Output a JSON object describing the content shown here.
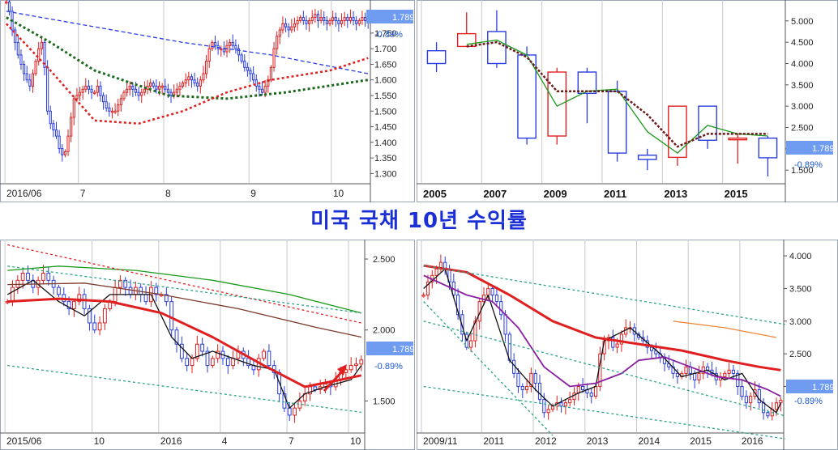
{
  "title": "미국 국채 10년 수익률",
  "colors": {
    "up": "#e02020",
    "down": "#2a3de0",
    "label_bg": "#6f9cf0",
    "change": "#1a56e0",
    "title": "#1a2fd6"
  },
  "chart_data": [
    {
      "id": "daily",
      "type": "candlestick",
      "last_value": "1.789",
      "change": "-0.89%",
      "y_ticks": [
        "1.300",
        "1.350",
        "1.400",
        "1.450",
        "1.500",
        "1.550",
        "1.600",
        "1.650",
        "1.700",
        "1.750",
        "1.800"
      ],
      "ylim": [
        1.27,
        1.83
      ],
      "x_ticks": [
        "2016/06",
        "7",
        "8",
        "9",
        "10"
      ],
      "x_tick_pos": [
        0,
        25,
        54,
        83,
        111
      ],
      "n": 124,
      "closes": [
        1.85,
        1.82,
        1.76,
        1.72,
        1.68,
        1.65,
        1.62,
        1.6,
        1.58,
        1.62,
        1.66,
        1.7,
        1.72,
        1.64,
        1.5,
        1.46,
        1.44,
        1.42,
        1.38,
        1.36,
        1.37,
        1.42,
        1.48,
        1.54,
        1.55,
        1.56,
        1.57,
        1.58,
        1.57,
        1.56,
        1.56,
        1.58,
        1.55,
        1.53,
        1.51,
        1.5,
        1.5,
        1.5,
        1.52,
        1.54,
        1.56,
        1.57,
        1.58,
        1.57,
        1.56,
        1.55,
        1.56,
        1.57,
        1.58,
        1.59,
        1.58,
        1.57,
        1.58,
        1.58,
        1.57,
        1.56,
        1.55,
        1.56,
        1.57,
        1.58,
        1.59,
        1.6,
        1.61,
        1.6,
        1.59,
        1.58,
        1.6,
        1.62,
        1.66,
        1.7,
        1.72,
        1.71,
        1.7,
        1.7,
        1.69,
        1.71,
        1.72,
        1.71,
        1.7,
        1.68,
        1.66,
        1.64,
        1.63,
        1.62,
        1.6,
        1.58,
        1.57,
        1.56,
        1.58,
        1.6,
        1.64,
        1.7,
        1.74,
        1.76,
        1.78,
        1.77,
        1.76,
        1.77,
        1.78,
        1.79,
        1.8,
        1.79,
        1.78,
        1.79,
        1.8,
        1.81,
        1.79,
        1.8,
        1.79,
        1.78,
        1.79,
        1.8,
        1.79,
        1.78,
        1.79,
        1.8,
        1.79,
        1.8,
        1.79,
        1.78,
        1.79,
        1.8,
        1.79,
        1.789
      ],
      "lines": [
        {
          "name": "",
          "color": "#2a3de0",
          "dash": "5,3",
          "width": 1.3,
          "values": [
            [
              0,
              1.82
            ],
            [
              60,
              1.72
            ],
            [
              90,
              1.68
            ],
            [
              123,
              1.62
            ]
          ]
        },
        {
          "name": "",
          "color": "#1d6a1d",
          "dash": "3,3",
          "width": 3,
          "values": [
            [
              0,
              1.8
            ],
            [
              15,
              1.72
            ],
            [
              30,
              1.63
            ],
            [
              55,
              1.55
            ],
            [
              75,
              1.54
            ],
            [
              95,
              1.56
            ],
            [
              123,
              1.6
            ]
          ]
        },
        {
          "name": "",
          "color": "#e02020",
          "dash": "3,3",
          "width": 2.5,
          "values": [
            [
              0,
              1.78
            ],
            [
              15,
              1.63
            ],
            [
              30,
              1.47
            ],
            [
              45,
              1.46
            ],
            [
              60,
              1.5
            ],
            [
              75,
              1.56
            ],
            [
              90,
              1.6
            ],
            [
              110,
              1.63
            ],
            [
              123,
              1.67
            ]
          ]
        }
      ]
    },
    {
      "id": "yearly",
      "type": "candlestick",
      "last_value": "1.789",
      "change": "-0.89%",
      "y_ticks": [
        "1.500",
        "2.000",
        "2.500",
        "3.000",
        "3.500",
        "4.000",
        "4.500",
        "5.000"
      ],
      "ylim": [
        1.2,
        5.3
      ],
      "x_ticks": [
        "2005",
        "2007",
        "2009",
        "2011",
        "2013",
        "2015"
      ],
      "x_tick_pos": [
        0,
        2,
        4,
        6,
        8,
        10
      ],
      "n": 12,
      "candles": [
        [
          4.3,
          4.0,
          4.5,
          3.8
        ],
        [
          4.4,
          4.7,
          5.2,
          4.4
        ],
        [
          4.75,
          4.0,
          5.25,
          3.9
        ],
        [
          4.2,
          2.25,
          4.4,
          2.1
        ],
        [
          2.3,
          3.8,
          3.9,
          2.1
        ],
        [
          3.8,
          3.3,
          3.9,
          2.6
        ],
        [
          3.35,
          1.9,
          3.6,
          1.7
        ],
        [
          1.85,
          1.75,
          2.0,
          1.5
        ],
        [
          1.8,
          3.0,
          3.0,
          1.6
        ],
        [
          3.0,
          2.2,
          3.0,
          2.0
        ],
        [
          2.25,
          2.25,
          2.35,
          1.65
        ],
        [
          2.25,
          1.79,
          2.3,
          1.35
        ]
      ],
      "lines": [
        {
          "name": "",
          "color": "#1a9a1a",
          "dash": "",
          "width": 1.3,
          "values": [
            [
              1,
              4.45
            ],
            [
              2,
              4.55
            ],
            [
              3,
              4.2
            ],
            [
              4,
              3.0
            ],
            [
              5,
              3.35
            ],
            [
              6,
              3.4
            ],
            [
              7,
              2.4
            ],
            [
              8,
              1.9
            ],
            [
              9,
              2.55
            ],
            [
              10,
              2.35
            ],
            [
              11,
              2.3
            ]
          ]
        },
        {
          "name": "",
          "color": "#6a1b1b",
          "dash": "3,2",
          "width": 2.5,
          "values": [
            [
              1,
              4.4
            ],
            [
              2,
              4.5
            ],
            [
              3,
              4.15
            ],
            [
              4,
              3.35
            ],
            [
              5,
              3.35
            ],
            [
              6,
              3.35
            ],
            [
              7,
              2.8
            ],
            [
              8,
              2.05
            ],
            [
              9,
              2.35
            ],
            [
              10,
              2.35
            ],
            [
              11,
              2.35
            ]
          ]
        }
      ]
    },
    {
      "id": "weekly",
      "type": "candlestick",
      "last_value": "1.789",
      "change": "-0.89%",
      "y_ticks": [
        "1.500",
        "2.000",
        "2.500"
      ],
      "ylim": [
        1.28,
        2.58
      ],
      "x_ticks": [
        "2015/06",
        "10",
        "2016",
        "4",
        "7",
        "10"
      ],
      "x_tick_pos": [
        0,
        17,
        30,
        42,
        55,
        67
      ],
      "n": 70,
      "closes": [
        2.2,
        2.3,
        2.35,
        2.4,
        2.35,
        2.3,
        2.35,
        2.4,
        2.35,
        2.3,
        2.25,
        2.2,
        2.15,
        2.2,
        2.25,
        2.15,
        2.05,
        2.0,
        2.05,
        2.15,
        2.2,
        2.3,
        2.35,
        2.3,
        2.25,
        2.3,
        2.25,
        2.2,
        2.3,
        2.25,
        2.25,
        2.2,
        2.0,
        1.9,
        1.8,
        1.75,
        1.8,
        1.9,
        1.85,
        1.75,
        1.8,
        1.85,
        1.8,
        1.75,
        1.8,
        1.85,
        1.8,
        1.75,
        1.72,
        1.8,
        1.85,
        1.75,
        1.7,
        1.55,
        1.45,
        1.4,
        1.45,
        1.5,
        1.55,
        1.6,
        1.58,
        1.6,
        1.62,
        1.6,
        1.65,
        1.7,
        1.72,
        1.75,
        1.76,
        1.789
      ],
      "lines": [
        {
          "name": "",
          "color": "#111111",
          "dash": "",
          "width": 1.3,
          "values": [
            [
              0,
              2.25
            ],
            [
              5,
              2.35
            ],
            [
              10,
              2.2
            ],
            [
              15,
              2.1
            ],
            [
              20,
              2.25
            ],
            [
              28,
              2.25
            ],
            [
              32,
              1.95
            ],
            [
              36,
              1.8
            ],
            [
              40,
              1.85
            ],
            [
              44,
              1.8
            ],
            [
              48,
              1.75
            ],
            [
              52,
              1.72
            ],
            [
              55,
              1.45
            ],
            [
              58,
              1.55
            ],
            [
              62,
              1.6
            ],
            [
              67,
              1.65
            ],
            [
              69,
              1.75
            ]
          ]
        },
        {
          "name": "",
          "color": "#e02020",
          "dash": "",
          "width": 3,
          "values": [
            [
              0,
              2.2
            ],
            [
              10,
              2.22
            ],
            [
              20,
              2.2
            ],
            [
              30,
              2.12
            ],
            [
              40,
              1.95
            ],
            [
              50,
              1.75
            ],
            [
              58,
              1.6
            ],
            [
              65,
              1.65
            ],
            [
              69,
              1.68
            ]
          ]
        },
        {
          "name": "",
          "color": "#7b3a2a",
          "dash": "",
          "width": 1.3,
          "values": [
            [
              0,
              2.32
            ],
            [
              15,
              2.33
            ],
            [
              30,
              2.25
            ],
            [
              45,
              2.15
            ],
            [
              60,
              2.02
            ],
            [
              69,
              1.95
            ]
          ]
        },
        {
          "name": "",
          "color": "#1a9a1a",
          "dash": "",
          "width": 1.3,
          "values": [
            [
              0,
              2.42
            ],
            [
              10,
              2.45
            ],
            [
              25,
              2.42
            ],
            [
              40,
              2.35
            ],
            [
              55,
              2.25
            ],
            [
              69,
              2.12
            ]
          ]
        },
        {
          "name": "",
          "color": "#e02020",
          "dash": "3,3",
          "width": 1.3,
          "values": [
            [
              0,
              2.6
            ],
            [
              69,
              2.05
            ]
          ]
        },
        {
          "name": "",
          "color": "#2aa58a",
          "dash": "3,3",
          "width": 1.3,
          "values": [
            [
              0,
              2.45
            ],
            [
              69,
              2.12
            ]
          ]
        },
        {
          "name": "",
          "color": "#2aa58a",
          "dash": "3,3",
          "width": 1.3,
          "values": [
            [
              0,
              1.75
            ],
            [
              69,
              1.42
            ]
          ]
        }
      ]
    },
    {
      "id": "monthly",
      "type": "candlestick",
      "last_value": "1.789",
      "change": "-0.89%",
      "y_ticks": [
        "2.000",
        "2.500",
        "3.000",
        "3.500",
        "4.000"
      ],
      "ylim": [
        1.3,
        4.15
      ],
      "x_ticks": [
        "2009/11",
        "2011",
        "2012",
        "2013",
        "2014",
        "2015",
        "2016"
      ],
      "x_tick_pos": [
        0,
        14,
        26,
        38,
        50,
        62,
        74
      ],
      "n": 84,
      "closes": [
        3.4,
        3.6,
        3.7,
        3.8,
        3.9,
        3.8,
        3.6,
        3.4,
        3.1,
        2.8,
        2.6,
        2.7,
        3.0,
        3.3,
        3.4,
        3.5,
        3.4,
        3.3,
        3.1,
        2.8,
        2.4,
        2.2,
        2.0,
        1.95,
        2.0,
        2.2,
        2.05,
        1.8,
        1.6,
        1.65,
        1.7,
        1.75,
        1.7,
        1.75,
        1.8,
        1.9,
        2.0,
        1.95,
        1.9,
        1.85,
        2.0,
        2.5,
        2.7,
        2.75,
        2.6,
        2.65,
        2.8,
        2.9,
        2.9,
        2.8,
        2.75,
        2.7,
        2.6,
        2.55,
        2.5,
        2.45,
        2.35,
        2.3,
        2.2,
        2.15,
        2.2,
        2.3,
        2.2,
        2.1,
        2.2,
        2.3,
        2.25,
        2.2,
        2.1,
        2.15,
        2.2,
        2.25,
        2.2,
        2.0,
        1.85,
        1.75,
        1.85,
        1.95,
        1.75,
        1.6,
        1.55,
        1.65,
        1.75,
        1.789
      ],
      "lines": [
        {
          "name": "",
          "color": "#111111",
          "dash": "",
          "width": 1.3,
          "values": [
            [
              0,
              3.5
            ],
            [
              5,
              3.8
            ],
            [
              10,
              2.7
            ],
            [
              15,
              3.4
            ],
            [
              20,
              2.4
            ],
            [
              26,
              1.95
            ],
            [
              30,
              1.7
            ],
            [
              36,
              1.9
            ],
            [
              40,
              2.0
            ],
            [
              42,
              2.7
            ],
            [
              48,
              2.9
            ],
            [
              55,
              2.5
            ],
            [
              60,
              2.15
            ],
            [
              66,
              2.25
            ],
            [
              70,
              2.1
            ],
            [
              74,
              2.2
            ],
            [
              78,
              1.8
            ],
            [
              82,
              1.6
            ],
            [
              83,
              1.75
            ]
          ]
        },
        {
          "name": "",
          "color": "#e02020",
          "dash": "",
          "width": 3,
          "values": [
            [
              0,
              3.85
            ],
            [
              10,
              3.75
            ],
            [
              20,
              3.4
            ],
            [
              30,
              3.0
            ],
            [
              40,
              2.75
            ],
            [
              50,
              2.65
            ],
            [
              60,
              2.55
            ],
            [
              70,
              2.4
            ],
            [
              78,
              2.3
            ],
            [
              83,
              2.25
            ]
          ]
        },
        {
          "name": "",
          "color": "#8a1fa0",
          "dash": "",
          "width": 1.8,
          "values": [
            [
              0,
              3.7
            ],
            [
              10,
              3.4
            ],
            [
              16,
              3.3
            ],
            [
              22,
              2.9
            ],
            [
              28,
              2.3
            ],
            [
              34,
              2.0
            ],
            [
              40,
              2.05
            ],
            [
              46,
              2.2
            ],
            [
              50,
              2.4
            ],
            [
              56,
              2.45
            ],
            [
              62,
              2.3
            ],
            [
              68,
              2.15
            ],
            [
              74,
              2.1
            ],
            [
              80,
              1.95
            ],
            [
              83,
              1.85
            ]
          ]
        },
        {
          "name": "",
          "color": "#f0883a",
          "dash": "",
          "width": 1.3,
          "values": [
            [
              58,
              3.0
            ],
            [
              70,
              2.9
            ],
            [
              82,
              2.75
            ]
          ]
        },
        {
          "name": "",
          "color": "#2aa58a",
          "dash": "3,3",
          "width": 1.3,
          "values": [
            [
              0,
              3.85
            ],
            [
              84,
              2.95
            ]
          ]
        },
        {
          "name": "",
          "color": "#2aa58a",
          "dash": "3,3",
          "width": 1.3,
          "values": [
            [
              0,
              3.0
            ],
            [
              84,
              1.55
            ]
          ]
        },
        {
          "name": "",
          "color": "#2aa58a",
          "dash": "3,3",
          "width": 1.3,
          "values": [
            [
              0,
              2.0
            ],
            [
              84,
              1.2
            ]
          ]
        },
        {
          "name": "",
          "color": "#2aa58a",
          "dash": "3,3",
          "width": 1.3,
          "values": [
            [
              0,
              3.3
            ],
            [
              30,
              1.25
            ]
          ]
        }
      ]
    }
  ]
}
